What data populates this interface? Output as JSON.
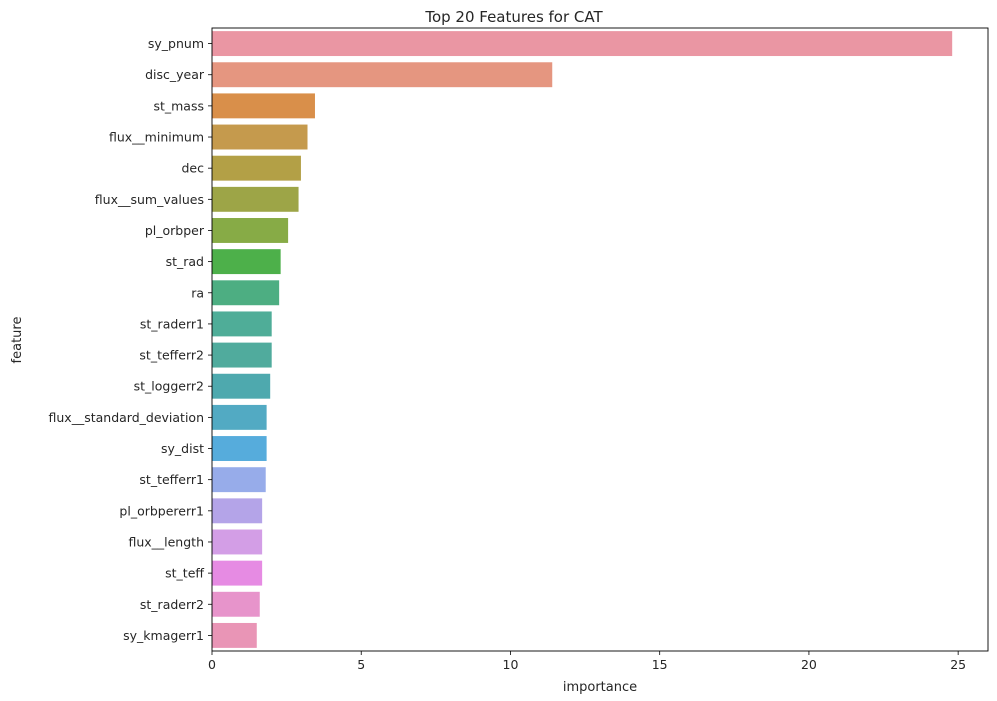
{
  "chart_data": {
    "type": "bar",
    "orientation": "horizontal",
    "title": "Top 20 Features for CAT",
    "xlabel": "importance",
    "ylabel": "feature",
    "xlim": [
      0,
      26
    ],
    "xticks": [
      0,
      5,
      10,
      15,
      20,
      25
    ],
    "grid": false,
    "categories": [
      "sy_pnum",
      "disc_year",
      "st_mass",
      "flux__minimum",
      "dec",
      "flux__sum_values",
      "pl_orbper",
      "st_rad",
      "ra",
      "st_raderr1",
      "st_tefferr2",
      "st_loggerr2",
      "flux__standard_deviation",
      "sy_dist",
      "st_tefferr1",
      "pl_orbpererr1",
      "flux__length",
      "st_teff",
      "st_raderr2",
      "sy_kmagerr1"
    ],
    "values": [
      24.8,
      11.4,
      3.45,
      3.2,
      2.98,
      2.9,
      2.55,
      2.3,
      2.25,
      2.0,
      2.0,
      1.95,
      1.83,
      1.83,
      1.8,
      1.68,
      1.68,
      1.68,
      1.6,
      1.5
    ],
    "colors": [
      "#ea96a3",
      "#e59680",
      "#d98f4a",
      "#c59a4d",
      "#b3a046",
      "#9da547",
      "#87ab46",
      "#4db04a",
      "#4dae82",
      "#4fad98",
      "#50ab9d",
      "#4ea9ae",
      "#52aac3",
      "#56acdc",
      "#97acea",
      "#b4a4e8",
      "#d39ee6",
      "#e68be3",
      "#e794cb",
      "#e995b6"
    ]
  }
}
